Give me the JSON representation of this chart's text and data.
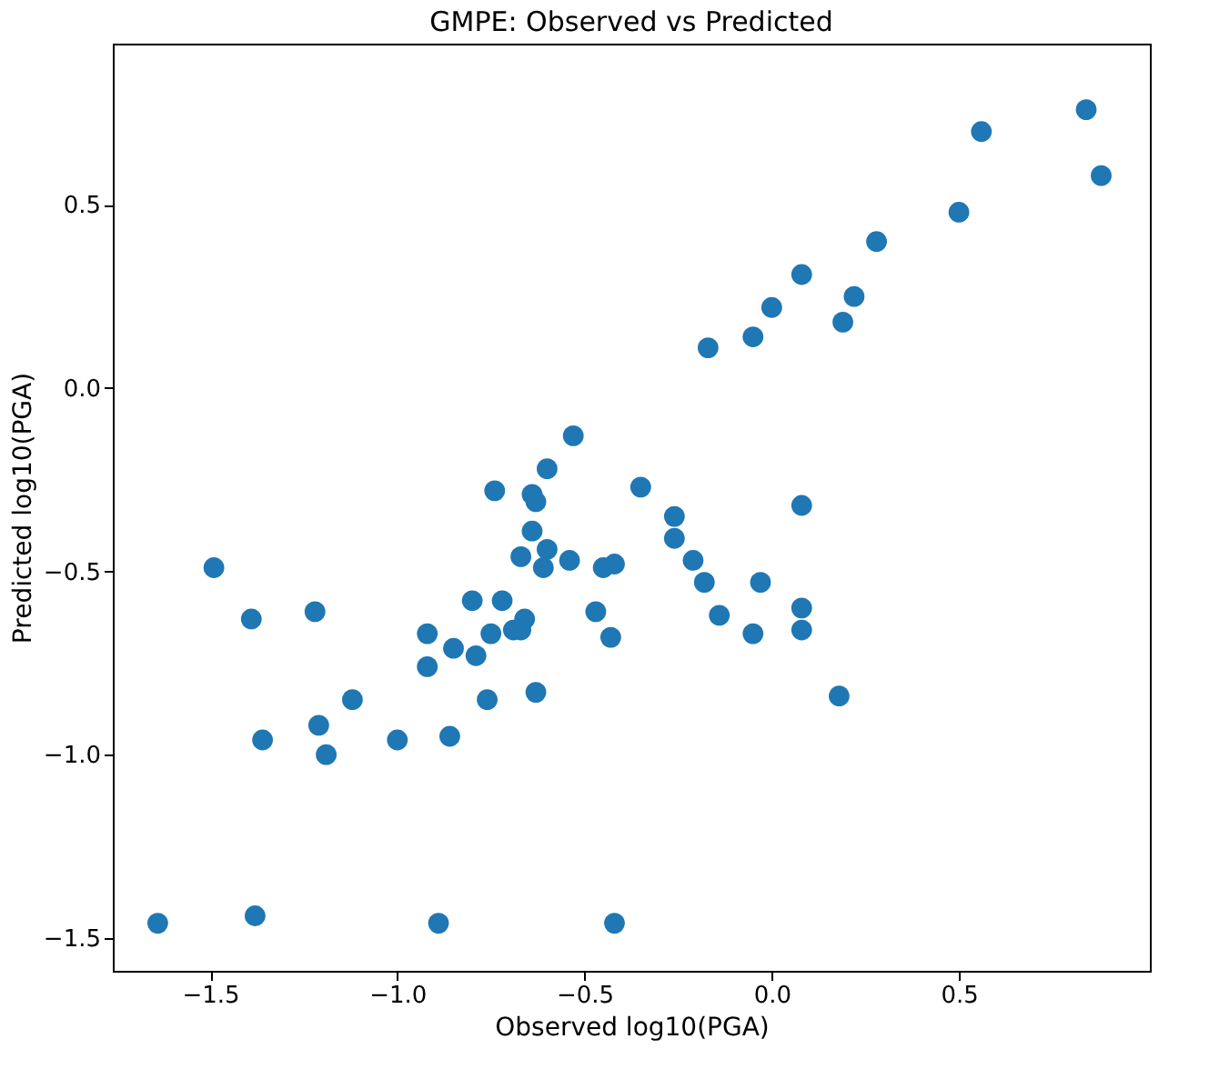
{
  "chart_data": {
    "type": "scatter",
    "title": "GMPE: Observed vs Predicted",
    "xlabel": "Observed log10(PGA)",
    "ylabel": "Predicted log10(PGA)",
    "x": [
      -1.64,
      -1.38,
      -0.89,
      -0.42,
      -1.49,
      -1.39,
      -1.22,
      -1.12,
      -1.36,
      -1.21,
      -1.19,
      -1.0,
      -0.92,
      -0.92,
      -0.86,
      -0.85,
      -0.8,
      -0.79,
      -0.76,
      -0.75,
      -0.74,
      -0.72,
      -0.69,
      -0.67,
      -0.66,
      -0.67,
      -0.64,
      -0.61,
      -0.63,
      -0.64,
      -0.63,
      -0.6,
      -0.6,
      -0.53,
      -0.54,
      -0.45,
      -0.42,
      -0.47,
      -0.43,
      -0.35,
      -0.26,
      -0.26,
      -0.21,
      -0.18,
      -0.14,
      -0.03,
      -0.05,
      0.08,
      0.08,
      0.08,
      0.18,
      -0.17,
      -0.05,
      0.0,
      0.08,
      0.19,
      0.22,
      0.28,
      0.5,
      0.56,
      0.84,
      0.88
    ],
    "series": [
      {
        "color": "#1f77b4",
        "values": [
          -1.46,
          -1.44,
          -1.46,
          -1.46,
          -0.49,
          -0.63,
          -0.61,
          -0.85,
          -0.96,
          -0.92,
          -1.0,
          -0.96,
          -0.67,
          -0.76,
          -0.95,
          -0.71,
          -0.58,
          -0.73,
          -0.85,
          -0.67,
          -0.28,
          -0.58,
          -0.66,
          -0.66,
          -0.63,
          -0.46,
          -0.39,
          -0.49,
          -0.83,
          -0.29,
          -0.31,
          -0.22,
          -0.44,
          -0.13,
          -0.47,
          -0.49,
          -0.48,
          -0.61,
          -0.68,
          -0.27,
          -0.35,
          -0.41,
          -0.47,
          -0.53,
          -0.62,
          -0.53,
          -0.67,
          -0.32,
          -0.6,
          -0.66,
          -0.84,
          0.11,
          0.14,
          0.22,
          0.31,
          0.18,
          0.25,
          0.4,
          0.48,
          0.7,
          0.76,
          0.58
        ]
      }
    ],
    "xlim": [
      -1.76,
      1.01
    ],
    "ylim": [
      -1.59,
      0.94
    ],
    "xticks": [
      -1.5,
      {
        "value": -1,
        "label": "−1.0"
      },
      -0.5,
      {
        "value": 0,
        "label": "0.0"
      },
      0.5
    ],
    "yticks": [
      -1.5,
      {
        "value": -1,
        "label": "−1.0"
      },
      -0.5,
      {
        "value": 0,
        "label": "0.0"
      },
      0.5
    ],
    "marker": "circle",
    "grid": false
  }
}
